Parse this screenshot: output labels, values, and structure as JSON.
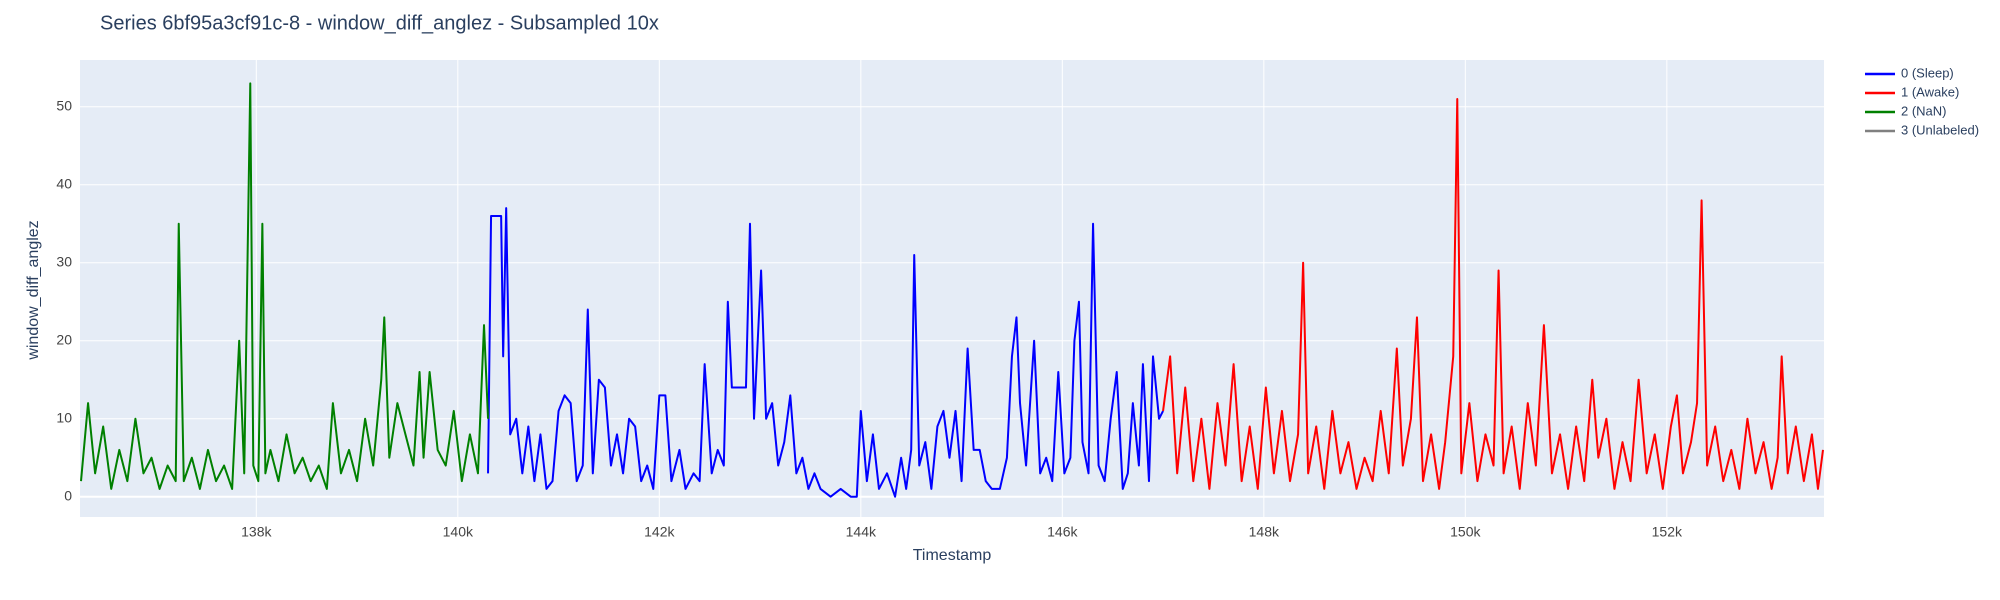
{
  "chart_data": {
    "type": "line",
    "title": "Series 6bf95a3cf91c-8 - window_diff_anglez - Subsampled 10x",
    "x_label": "Timestamp",
    "y_label": "window_diff_anglez",
    "xlim": [
      136250,
      153560
    ],
    "ylim": [
      -2.6,
      56
    ],
    "xticks": [
      {
        "value": 138000,
        "label": "138k"
      },
      {
        "value": 140000,
        "label": "140k"
      },
      {
        "value": 142000,
        "label": "142k"
      },
      {
        "value": 144000,
        "label": "144k"
      },
      {
        "value": 146000,
        "label": "146k"
      },
      {
        "value": 148000,
        "label": "148k"
      },
      {
        "value": 150000,
        "label": "150k"
      },
      {
        "value": 152000,
        "label": "152k"
      }
    ],
    "yticks": [
      0,
      10,
      20,
      30,
      40,
      50
    ],
    "grid": true,
    "legend": "right",
    "series": [
      {
        "name": "0 (Sleep)",
        "color": "#0000ff",
        "x": [
          140300,
          140330,
          140380,
          140430,
          140450,
          140480,
          140520,
          140580,
          140640,
          140700,
          140760,
          140820,
          140880,
          140940,
          141000,
          141060,
          141120,
          141180,
          141240,
          141290,
          141340,
          141400,
          141460,
          141520,
          141580,
          141640,
          141700,
          141760,
          141820,
          141880,
          141940,
          142000,
          142060,
          142120,
          142200,
          142260,
          142340,
          142400,
          142450,
          142520,
          142580,
          142640,
          142680,
          142720,
          142800,
          142860,
          142900,
          142940,
          143010,
          143060,
          143120,
          143180,
          143240,
          143300,
          143360,
          143420,
          143480,
          143540,
          143600,
          143700,
          143800,
          143900,
          143960,
          144000,
          144060,
          144120,
          144180,
          144260,
          144340,
          144400,
          144450,
          144500,
          144530,
          144580,
          144640,
          144700,
          144760,
          144820,
          144880,
          144940,
          145000,
          145060,
          145120,
          145180,
          145240,
          145300,
          145380,
          145450,
          145500,
          145545,
          145580,
          145640,
          145720,
          145780,
          145840,
          145900,
          145960,
          146020,
          146080,
          146120,
          146165,
          146200,
          146260,
          146305,
          146360,
          146420,
          146480,
          146540,
          146600,
          146650,
          146700,
          146760,
          146800,
          146860,
          146900,
          146960,
          147000
        ],
        "values": [
          3,
          36,
          36,
          36,
          18,
          37,
          8,
          10,
          3,
          9,
          2,
          8,
          1,
          2,
          11,
          13,
          12,
          2,
          4,
          24,
          3,
          15,
          14,
          4,
          8,
          3,
          10,
          9,
          2,
          4,
          1,
          13,
          13,
          2,
          6,
          1,
          3,
          2,
          17,
          3,
          6,
          4,
          25,
          14,
          14,
          14,
          35,
          10,
          29,
          10,
          12,
          4,
          7,
          13,
          3,
          5,
          1,
          3,
          1,
          0,
          1,
          0,
          0,
          11,
          2,
          8,
          1,
          3,
          0,
          5,
          1,
          6,
          31,
          4,
          7,
          1,
          9,
          11,
          5,
          11,
          2,
          19,
          6,
          6,
          2,
          1,
          1,
          5,
          18,
          23,
          12,
          4,
          20,
          3,
          5,
          2,
          16,
          3,
          5,
          20,
          25,
          7,
          3,
          35,
          4,
          2,
          10,
          16,
          1,
          3,
          12,
          4,
          17,
          2,
          18,
          10,
          11
        ]
      },
      {
        "name": "1 (Awake)",
        "color": "#ff0000",
        "x": [
          147000,
          147070,
          147140,
          147220,
          147300,
          147380,
          147460,
          147540,
          147620,
          147700,
          147780,
          147860,
          147940,
          148020,
          148100,
          148180,
          148260,
          148340,
          148390,
          148440,
          148520,
          148600,
          148680,
          148760,
          148840,
          148920,
          149000,
          149080,
          149160,
          149240,
          149320,
          149380,
          149460,
          149520,
          149580,
          149660,
          149740,
          149800,
          149880,
          149920,
          149960,
          150040,
          150120,
          150200,
          150280,
          150330,
          150380,
          150460,
          150540,
          150620,
          150700,
          150780,
          150860,
          150940,
          151020,
          151100,
          151180,
          151260,
          151320,
          151400,
          151480,
          151560,
          151640,
          151720,
          151800,
          151880,
          151960,
          152040,
          152100,
          152160,
          152240,
          152300,
          152345,
          152400,
          152480,
          152560,
          152640,
          152720,
          152800,
          152880,
          152960,
          153040,
          153100,
          153140,
          153200,
          153280,
          153360,
          153440,
          153500,
          153550
        ],
        "values": [
          11,
          18,
          3,
          14,
          2,
          10,
          1,
          12,
          4,
          17,
          2,
          9,
          1,
          14,
          3,
          11,
          2,
          8,
          30,
          3,
          9,
          1,
          11,
          3,
          7,
          1,
          5,
          2,
          11,
          3,
          19,
          4,
          10,
          23,
          2,
          8,
          1,
          7,
          18,
          51,
          3,
          12,
          2,
          8,
          4,
          29,
          3,
          9,
          1,
          12,
          4,
          22,
          3,
          8,
          1,
          9,
          2,
          15,
          5,
          10,
          1,
          7,
          2,
          15,
          3,
          8,
          1,
          9,
          13,
          3,
          7,
          12,
          38,
          4,
          9,
          2,
          6,
          1,
          10,
          3,
          7,
          1,
          5,
          18,
          3,
          9,
          2,
          8,
          1,
          6
        ]
      },
      {
        "name": "2 (NaN)",
        "color": "#008000",
        "x": [
          136260,
          136330,
          136400,
          136480,
          136560,
          136640,
          136720,
          136800,
          136880,
          136960,
          137040,
          137120,
          137200,
          137230,
          137280,
          137360,
          137440,
          137520,
          137600,
          137680,
          137760,
          137830,
          137880,
          137940,
          137970,
          138020,
          138060,
          138090,
          138140,
          138220,
          138300,
          138380,
          138460,
          138540,
          138620,
          138700,
          138760,
          138840,
          138920,
          139000,
          139080,
          139160,
          139240,
          139270,
          139320,
          139400,
          139480,
          139560,
          139620,
          139660,
          139720,
          139800,
          139880,
          139960,
          140040,
          140120,
          140200,
          140260,
          140300
        ],
        "values": [
          2,
          12,
          3,
          9,
          1,
          6,
          2,
          10,
          3,
          5,
          1,
          4,
          2,
          35,
          2,
          5,
          1,
          6,
          2,
          4,
          1,
          20,
          3,
          53,
          4,
          2,
          35,
          3,
          6,
          2,
          8,
          3,
          5,
          2,
          4,
          1,
          12,
          3,
          6,
          2,
          10,
          4,
          15,
          23,
          5,
          12,
          8,
          4,
          16,
          5,
          16,
          6,
          4,
          11,
          2,
          8,
          3,
          22,
          10
        ]
      },
      {
        "name": "3 (Unlabeled)",
        "color": "#808080"
      }
    ]
  }
}
